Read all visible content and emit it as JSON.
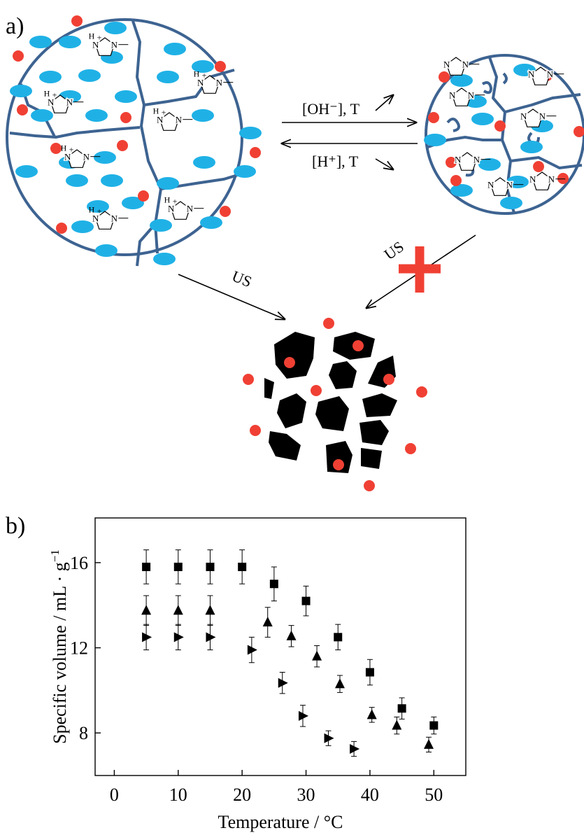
{
  "panels": {
    "a": "a)",
    "b": "b)"
  },
  "diagram": {
    "forward_label": "[OH⁻], T",
    "backward_label": "[H⁺], T",
    "us_left": "US",
    "us_right": "US",
    "atoms": {
      "n": "N",
      "h": "H",
      "plus": "+"
    }
  },
  "chart_data": {
    "type": "scatter",
    "x_label": "Temperature / °C",
    "y_label": "Specific volume / mL · g",
    "y_label_sup": "−1",
    "xlim": [
      -3,
      55
    ],
    "ylim": [
      6,
      18.1
    ],
    "xticks": [
      0,
      10,
      20,
      30,
      40,
      50
    ],
    "yticks": [
      8,
      12,
      16
    ],
    "series": [
      {
        "marker": "square",
        "color": "#000000",
        "x": [
          5,
          10,
          15,
          20,
          25,
          30,
          35,
          40,
          45,
          50
        ],
        "values": [
          15.8,
          15.8,
          15.8,
          15.8,
          15.0,
          14.2,
          12.5,
          10.85,
          9.15,
          8.35
        ],
        "errors": [
          0.8,
          0.8,
          0.8,
          0.8,
          0.8,
          0.7,
          0.6,
          0.6,
          0.5,
          0.4
        ]
      },
      {
        "marker": "triangle-up",
        "color": "#000000",
        "x": [
          5,
          10,
          15,
          24,
          27.7,
          31.7,
          35.3,
          40.3,
          44.2,
          49.2
        ],
        "values": [
          13.75,
          13.75,
          13.75,
          13.2,
          12.55,
          11.6,
          10.3,
          8.85,
          8.35,
          7.45
        ],
        "errors": [
          0.7,
          0.7,
          0.7,
          0.7,
          0.5,
          0.5,
          0.4,
          0.35,
          0.4,
          0.35
        ]
      },
      {
        "marker": "triangle-right",
        "color": "#000000",
        "x": [
          5,
          10,
          15,
          21.5,
          26.3,
          29.5,
          33.5,
          37.5
        ],
        "values": [
          12.5,
          12.5,
          12.5,
          11.9,
          10.35,
          8.8,
          7.75,
          7.25
        ],
        "errors": [
          0.6,
          0.6,
          0.6,
          0.6,
          0.5,
          0.5,
          0.35,
          0.35
        ]
      }
    ]
  }
}
